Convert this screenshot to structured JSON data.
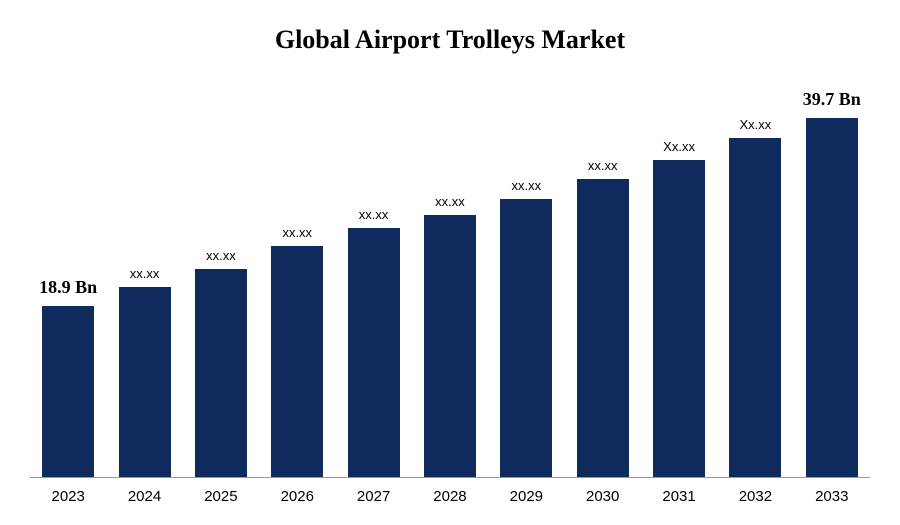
{
  "chart": {
    "type": "bar",
    "title": "Global Airport Trolleys Market",
    "title_fontsize": 26,
    "title_fontweight": "bold",
    "background_color": "#ffffff",
    "bar_color": "#0f2b5d",
    "axis_color": "#808080",
    "text_color": "#000000",
    "ylim_max": 45,
    "bar_width_pct": 68,
    "x_label_fontsize": 15,
    "endpoint_label_fontsize": 18,
    "endpoint_label_fontweight": "bold",
    "mid_label_fontsize": 13,
    "mid_label_fontweight": "normal",
    "categories": [
      "2023",
      "2024",
      "2025",
      "2026",
      "2027",
      "2028",
      "2029",
      "2030",
      "2031",
      "2032",
      "2033"
    ],
    "values": [
      18.9,
      21.0,
      23.0,
      25.5,
      27.5,
      29.0,
      30.7,
      33.0,
      35.0,
      37.5,
      39.7
    ],
    "value_labels": [
      "18.9 Bn",
      "xx.xx",
      "xx.xx",
      "xx.xx",
      "xx.xx",
      "xx.xx",
      "xx.xx",
      "xx.xx",
      "Xx.xx",
      "Xx.xx",
      "39.7 Bn"
    ],
    "endpoint_indices": [
      0,
      10
    ]
  }
}
